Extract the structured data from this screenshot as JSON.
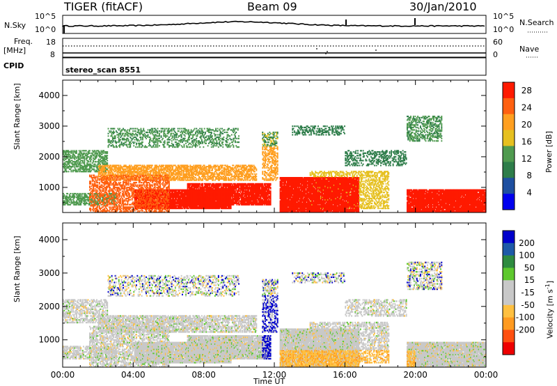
{
  "header": {
    "station": "TIGER (fitACF)",
    "beam": "Beam 09",
    "date": "30/Jan/2010"
  },
  "noise_panel": {
    "left_label": "N.Sky",
    "left_ticks": [
      "10^5",
      "10^0"
    ],
    "right_label": "N.Search",
    "right_ticks": [
      "10^5",
      "10^0"
    ]
  },
  "freq_panel": {
    "left_label_line1": "Freq.",
    "left_label_line2": "[MHz]",
    "left_ticks": [
      "18",
      "8"
    ],
    "right_label": "Nave",
    "right_ticks": [
      "60",
      "0"
    ],
    "cpid_label": "CPID",
    "cpid_value": "stereo_scan 8551"
  },
  "colors": {
    "power_scale": [
      "#0000ee",
      "#1e4fa0",
      "#2e7d4a",
      "#4f9a4f",
      "#e6c020",
      "#ff9f20",
      "#ff6010",
      "#ff1a00"
    ],
    "velocity_scale": [
      "#ee0000",
      "#ff5010",
      "#ff9a20",
      "#ffc040",
      "#c8c8c8",
      "#c8c8c8",
      "#5ec82e",
      "#2e8b40",
      "#1e5aa8",
      "#0000cc"
    ]
  },
  "chart_data": [
    {
      "type": "heatmap",
      "name": "power",
      "ylabel": "Slant Range [km]",
      "xlabel": "",
      "x_ticks": [
        "00:00",
        "04:00",
        "08:00",
        "12:00",
        "16:00",
        "20:00",
        "00:00"
      ],
      "x_range_hours": [
        0,
        24
      ],
      "y_ticks": [
        1000,
        2000,
        3000,
        4000
      ],
      "ylim": [
        180,
        4500
      ],
      "colorbar": {
        "label": "Power [dB]",
        "tick_values": [
          4,
          8,
          12,
          16,
          20,
          24,
          28
        ],
        "range": [
          0,
          30
        ]
      }
    },
    {
      "type": "heatmap",
      "name": "velocity",
      "ylabel": "Slant Range [km]",
      "xlabel": "Time UT",
      "x_ticks": [
        "00:00",
        "04:00",
        "08:00",
        "12:00",
        "16:00",
        "20:00",
        "00:00"
      ],
      "x_range_hours": [
        0,
        24
      ],
      "y_ticks": [
        1000,
        2000,
        3000,
        4000
      ],
      "ylim": [
        180,
        4500
      ],
      "colorbar": {
        "label_main": "Velocity [m s",
        "label_sup": "-1",
        "label_end": "]",
        "tick_labels": [
          "200",
          "100",
          "50",
          "15",
          "-15",
          "-50",
          "-100",
          "-200"
        ]
      }
    }
  ]
}
